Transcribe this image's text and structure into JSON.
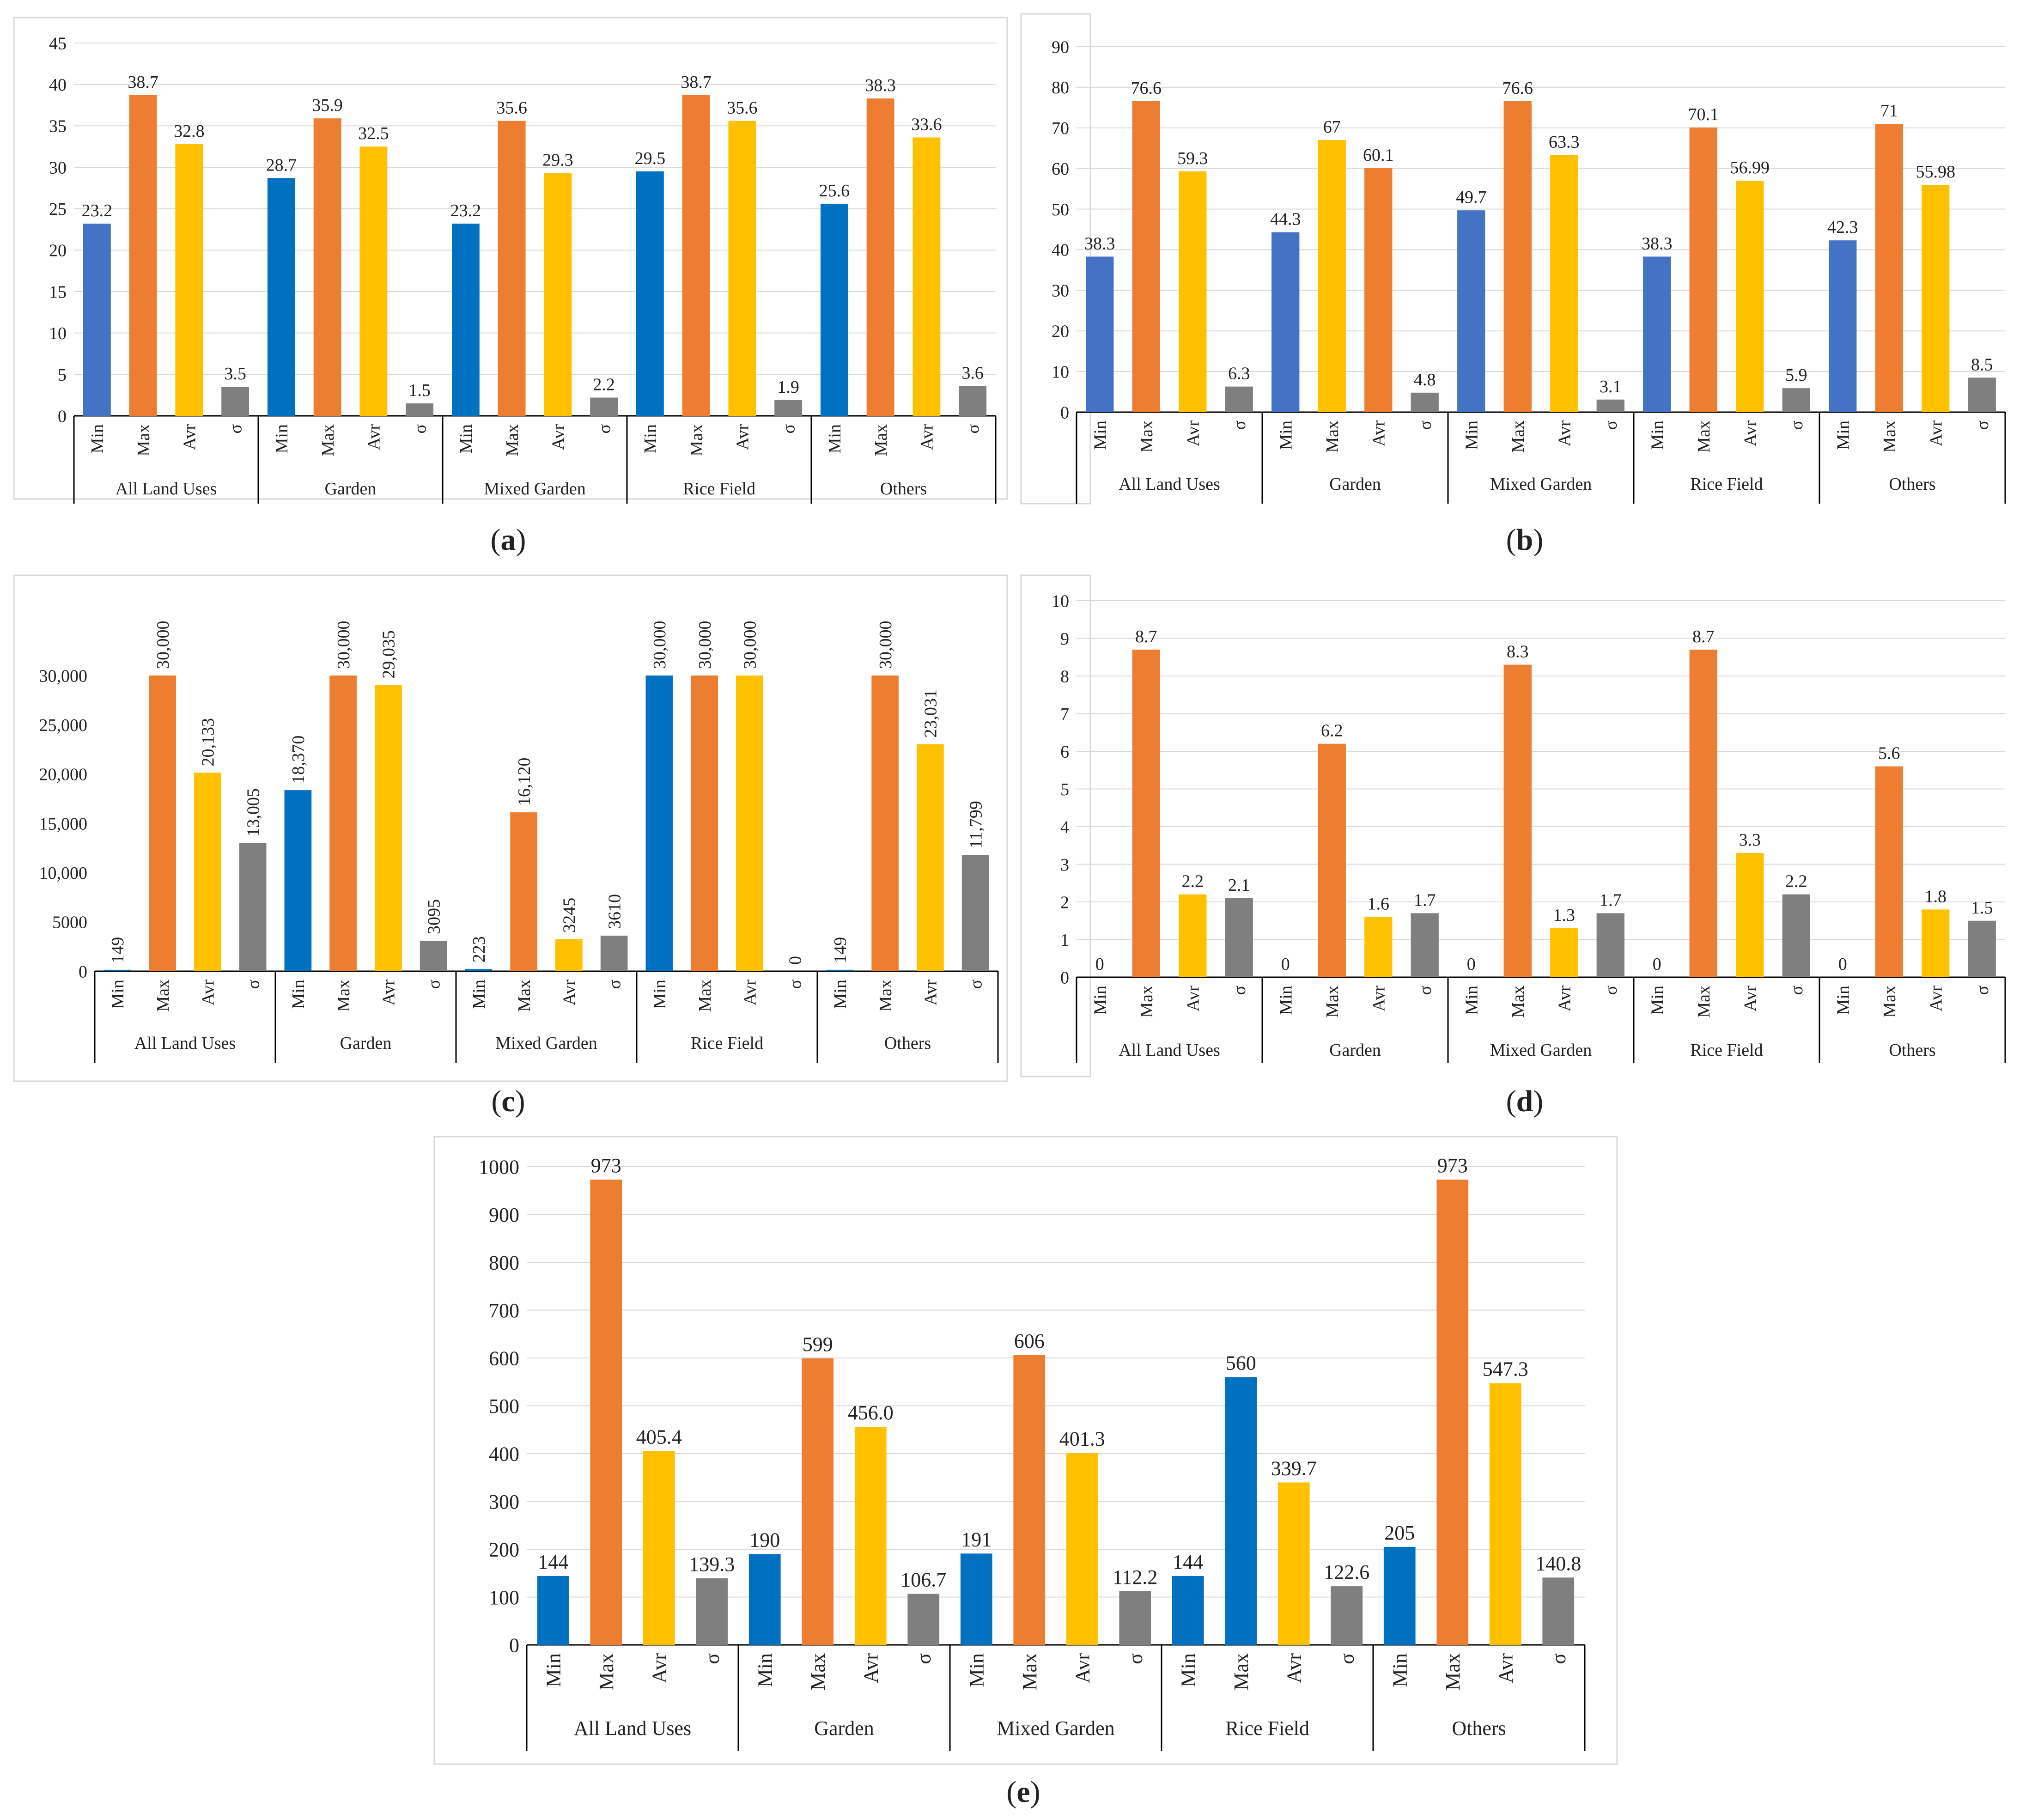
{
  "figure": {
    "panel_labels": [
      "a",
      "b",
      "c",
      "d",
      "e"
    ],
    "categories": [
      "All Land Uses",
      "Garden",
      "Mixed Garden",
      "Rice Field",
      "Others"
    ],
    "stats": [
      "Min",
      "Max",
      "Avr",
      "σ"
    ]
  },
  "chart_data": [
    {
      "type": "bar",
      "panel": "a",
      "title": "",
      "xlabel": "",
      "ylabel": "",
      "ylim": [
        0,
        45
      ],
      "yticks": [
        "0",
        "5",
        "10",
        "15",
        "20",
        "25",
        "30",
        "35",
        "40",
        "45"
      ],
      "ytick_values": [
        0,
        5,
        10,
        15,
        20,
        25,
        30,
        35,
        40,
        45
      ],
      "grid": true,
      "categories": [
        "All Land Uses",
        "Garden",
        "Mixed Garden",
        "Rice Field",
        "Others"
      ],
      "bar_labels": [
        "Min",
        "Max",
        "Avr",
        "σ"
      ],
      "values": [
        [
          23.2,
          38.7,
          32.8,
          3.5
        ],
        [
          28.7,
          35.9,
          32.5,
          1.5
        ],
        [
          23.2,
          35.6,
          29.3,
          2.2
        ],
        [
          29.5,
          38.7,
          35.6,
          1.9
        ],
        [
          25.6,
          38.3,
          33.6,
          3.6
        ]
      ],
      "data_labels": [
        [
          "23.2",
          "38.7",
          "32.8",
          "3.5"
        ],
        [
          "28.7",
          "35.9",
          "32.5",
          "1.5"
        ],
        [
          "23.2",
          "35.6",
          "29.3",
          "2.2"
        ],
        [
          "29.5",
          "38.7",
          "35.6",
          "1.9"
        ],
        [
          "25.6",
          "38.3",
          "33.6",
          "3.6"
        ]
      ],
      "colors": [
        [
          "#4472C4",
          "#ED7D31",
          "#FFC000",
          "#7F7F7F"
        ],
        [
          "#0070C0",
          "#ED7D31",
          "#FFC000",
          "#7F7F7F"
        ],
        [
          "#0070C0",
          "#ED7D31",
          "#FFC000",
          "#7F7F7F"
        ],
        [
          "#0070C0",
          "#ED7D31",
          "#FFC000",
          "#7F7F7F"
        ],
        [
          "#0070C0",
          "#ED7D31",
          "#FFC000",
          "#7F7F7F"
        ]
      ]
    },
    {
      "type": "bar",
      "panel": "b",
      "title": "",
      "xlabel": "",
      "ylabel": "",
      "ylim": [
        0,
        90
      ],
      "yticks": [
        "0",
        "10",
        "20",
        "30",
        "40",
        "50",
        "60",
        "70",
        "80",
        "90"
      ],
      "ytick_values": [
        0,
        10,
        20,
        30,
        40,
        50,
        60,
        70,
        80,
        90
      ],
      "grid": true,
      "categories": [
        "All Land Uses",
        "Garden",
        "Mixed Garden",
        "Rice Field",
        "Others"
      ],
      "bar_labels": [
        "Min",
        "Max",
        "Avr",
        "σ"
      ],
      "values": [
        [
          38.3,
          76.6,
          59.3,
          6.3
        ],
        [
          44.3,
          67,
          60.1,
          4.8
        ],
        [
          49.7,
          76.6,
          63.3,
          3.1
        ],
        [
          38.3,
          70.1,
          56.99,
          5.9
        ],
        [
          42.3,
          71,
          55.98,
          8.5
        ]
      ],
      "data_labels": [
        [
          "38.3",
          "76.6",
          "59.3",
          "6.3"
        ],
        [
          "44.3",
          "67",
          "60.1",
          "4.8"
        ],
        [
          "49.7",
          "76.6",
          "63.3",
          "3.1"
        ],
        [
          "38.3",
          "70.1",
          "56.99",
          "5.9"
        ],
        [
          "42.3",
          "71",
          "55.98",
          "8.5"
        ]
      ],
      "colors": [
        [
          "#4472C4",
          "#ED7D31",
          "#FFC000",
          "#7F7F7F"
        ],
        [
          "#4472C4",
          "#FFC000",
          "#ED7D31",
          "#7F7F7F"
        ],
        [
          "#4472C4",
          "#ED7D31",
          "#FFC000",
          "#7F7F7F"
        ],
        [
          "#4472C4",
          "#ED7D31",
          "#FFC000",
          "#7F7F7F"
        ],
        [
          "#4472C4",
          "#ED7D31",
          "#FFC000",
          "#7F7F7F"
        ]
      ]
    },
    {
      "type": "bar",
      "panel": "c",
      "title": "",
      "xlabel": "",
      "ylabel": "",
      "ylim": [
        0,
        30000
      ],
      "yticks": [
        "0",
        "5000",
        "10,000",
        "15,000",
        "20,000",
        "25,000",
        "30,000"
      ],
      "ytick_values": [
        0,
        5000,
        10000,
        15000,
        20000,
        25000,
        30000
      ],
      "grid": false,
      "rotated_labels": true,
      "categories": [
        "All Land Uses",
        "Garden",
        "Mixed Garden",
        "Rice Field",
        "Others"
      ],
      "bar_labels": [
        "Min",
        "Max",
        "Avr",
        "σ"
      ],
      "values": [
        [
          149,
          30000,
          20133,
          13005
        ],
        [
          18370,
          30000,
          29035,
          3095
        ],
        [
          223,
          16120,
          3245,
          3610
        ],
        [
          30000,
          30000,
          30000,
          0
        ],
        [
          149,
          30000,
          23031,
          11799
        ]
      ],
      "data_labels": [
        [
          "149",
          "30,000",
          "20,133",
          "13,005"
        ],
        [
          "18,370",
          "30,000",
          "29,035",
          "3095"
        ],
        [
          "223",
          "16,120",
          "3245",
          "3610"
        ],
        [
          "30,000",
          "30,000",
          "30,000",
          "0"
        ],
        [
          "149",
          "30,000",
          "23,031",
          "11,799"
        ]
      ],
      "colors": [
        [
          "#0070C0",
          "#ED7D31",
          "#FFC000",
          "#7F7F7F"
        ],
        [
          "#0070C0",
          "#ED7D31",
          "#FFC000",
          "#7F7F7F"
        ],
        [
          "#0070C0",
          "#ED7D31",
          "#FFC000",
          "#7F7F7F"
        ],
        [
          "#0070C0",
          "#ED7D31",
          "#FFC000",
          "#7F7F7F"
        ],
        [
          "#0070C0",
          "#ED7D31",
          "#FFC000",
          "#7F7F7F"
        ]
      ]
    },
    {
      "type": "bar",
      "panel": "d",
      "title": "",
      "xlabel": "",
      "ylabel": "",
      "ylim": [
        0,
        10
      ],
      "yticks": [
        "0",
        "1",
        "2",
        "3",
        "4",
        "5",
        "6",
        "7",
        "8",
        "9",
        "10"
      ],
      "ytick_values": [
        0,
        1,
        2,
        3,
        4,
        5,
        6,
        7,
        8,
        9,
        10
      ],
      "grid": true,
      "categories": [
        "All Land Uses",
        "Garden",
        "Mixed Garden",
        "Rice Field",
        "Others"
      ],
      "bar_labels": [
        "Min",
        "Max",
        "Avr",
        "σ"
      ],
      "values": [
        [
          0,
          8.7,
          2.2,
          2.1
        ],
        [
          0,
          6.2,
          1.6,
          1.7
        ],
        [
          0,
          8.3,
          1.3,
          1.7
        ],
        [
          0,
          8.7,
          3.3,
          2.2
        ],
        [
          0,
          5.6,
          1.8,
          1.5
        ]
      ],
      "data_labels": [
        [
          "0",
          "8.7",
          "2.2",
          "2.1"
        ],
        [
          "0",
          "6.2",
          "1.6",
          "1.7"
        ],
        [
          "0",
          "8.3",
          "1.3",
          "1.7"
        ],
        [
          "0",
          "8.7",
          "3.3",
          "2.2"
        ],
        [
          "0",
          "5.6",
          "1.8",
          "1.5"
        ]
      ],
      "colors": [
        [
          "#4472C4",
          "#ED7D31",
          "#FFC000",
          "#7F7F7F"
        ],
        [
          "#4472C4",
          "#ED7D31",
          "#FFC000",
          "#7F7F7F"
        ],
        [
          "#4472C4",
          "#ED7D31",
          "#FFC000",
          "#7F7F7F"
        ],
        [
          "#4472C4",
          "#ED7D31",
          "#FFC000",
          "#7F7F7F"
        ],
        [
          "#4472C4",
          "#ED7D31",
          "#FFC000",
          "#7F7F7F"
        ]
      ]
    },
    {
      "type": "bar",
      "panel": "e",
      "title": "",
      "xlabel": "",
      "ylabel": "",
      "ylim": [
        0,
        1000
      ],
      "yticks": [
        "0",
        "100",
        "200",
        "300",
        "400",
        "500",
        "600",
        "700",
        "800",
        "900",
        "1000"
      ],
      "ytick_values": [
        0,
        100,
        200,
        300,
        400,
        500,
        600,
        700,
        800,
        900,
        1000
      ],
      "grid": true,
      "categories": [
        "All Land Uses",
        "Garden",
        "Mixed Garden",
        "Rice Field",
        "Others"
      ],
      "bar_labels": [
        "Min",
        "Max",
        "Avr",
        "σ"
      ],
      "values": [
        [
          144,
          973,
          405.4,
          139.3
        ],
        [
          190,
          599,
          456.0,
          106.7
        ],
        [
          191,
          606,
          401.3,
          112.2
        ],
        [
          144,
          560,
          339.7,
          122.6
        ],
        [
          205,
          973,
          547.3,
          140.8
        ]
      ],
      "data_labels": [
        [
          "144",
          "973",
          "405.4",
          "139.3"
        ],
        [
          "190",
          "599",
          "456.0",
          "106.7"
        ],
        [
          "191",
          "606",
          "401.3",
          "112.2"
        ],
        [
          "144",
          "560",
          "339.7",
          "122.6"
        ],
        [
          "205",
          "973",
          "547.3",
          "140.8"
        ]
      ],
      "colors": [
        [
          "#0070C0",
          "#ED7D31",
          "#FFC000",
          "#7F7F7F"
        ],
        [
          "#0070C0",
          "#ED7D31",
          "#FFC000",
          "#7F7F7F"
        ],
        [
          "#0070C0",
          "#ED7D31",
          "#FFC000",
          "#7F7F7F"
        ],
        [
          "#0070C0",
          "#0070C0",
          "#FFC000",
          "#7F7F7F"
        ],
        [
          "#0070C0",
          "#ED7D31",
          "#FFC000",
          "#7F7F7F"
        ]
      ]
    }
  ]
}
